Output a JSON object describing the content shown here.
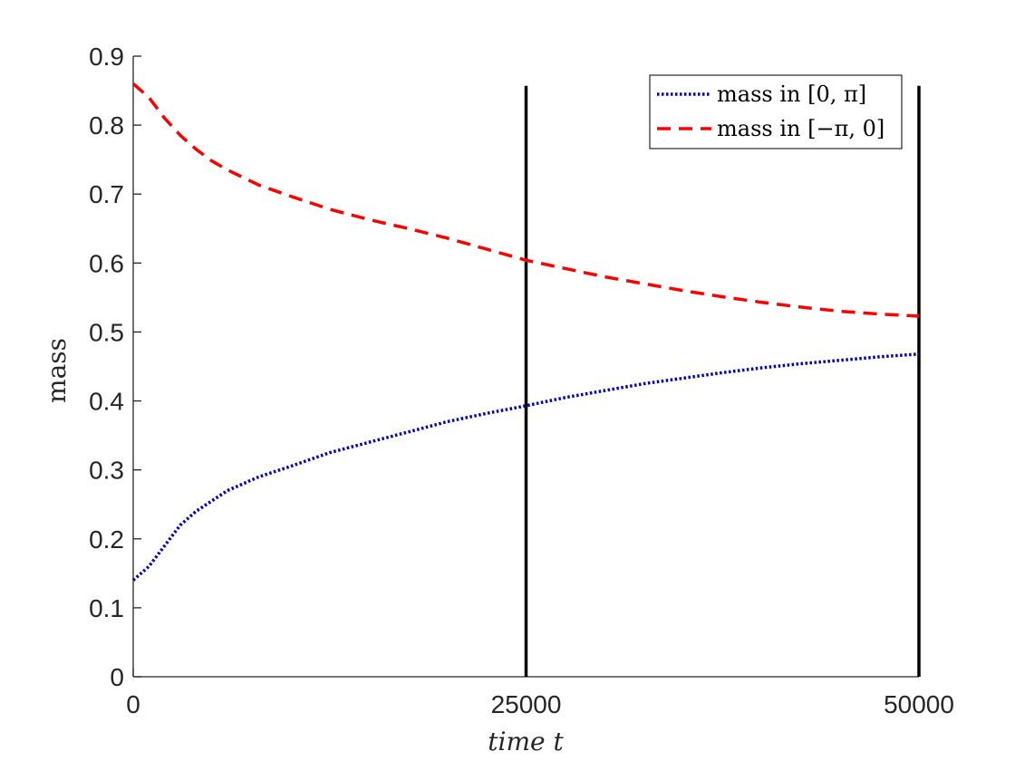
{
  "chart_data": {
    "type": "line",
    "xlabel": "time t",
    "ylabel": "mass",
    "xlim": [
      0,
      50000
    ],
    "ylim": [
      0,
      0.9
    ],
    "xticks": [
      0,
      25000,
      50000
    ],
    "xtick_labels": [
      "0",
      "25000",
      "50000"
    ],
    "yticks": [
      0,
      0.1,
      0.2,
      0.3,
      0.4,
      0.5,
      0.6,
      0.7,
      0.8,
      0.9
    ],
    "ytick_labels": [
      "0",
      "0.1",
      "0.2",
      "0.3",
      "0.4",
      "0.5",
      "0.6",
      "0.7",
      "0.8",
      "0.9"
    ],
    "grid": false,
    "legend_position": "top-right",
    "series": [
      {
        "name": "mass in [0, π]",
        "color": "#0000cc",
        "style": "dotted",
        "x": [
          0,
          1000,
          2000,
          3000,
          4000,
          5000,
          6000,
          7000,
          8000,
          10000,
          12500,
          15000,
          17500,
          20000,
          22500,
          25000,
          27500,
          30000,
          32500,
          35000,
          37500,
          40000,
          42500,
          45000,
          47500,
          50000
        ],
        "values": [
          0.14,
          0.16,
          0.19,
          0.22,
          0.24,
          0.255,
          0.27,
          0.28,
          0.29,
          0.305,
          0.325,
          0.34,
          0.355,
          0.37,
          0.382,
          0.393,
          0.405,
          0.415,
          0.425,
          0.433,
          0.441,
          0.448,
          0.454,
          0.459,
          0.464,
          0.468
        ]
      },
      {
        "name": "mass in [−π, 0]",
        "color": "#ff0000",
        "style": "dashed",
        "x": [
          0,
          1000,
          2000,
          3000,
          4000,
          5000,
          6000,
          7000,
          8000,
          10000,
          12500,
          15000,
          17500,
          20000,
          22500,
          25000,
          27500,
          30000,
          32500,
          35000,
          37500,
          40000,
          42500,
          45000,
          47500,
          50000
        ],
        "values": [
          0.86,
          0.84,
          0.81,
          0.785,
          0.765,
          0.748,
          0.735,
          0.724,
          0.713,
          0.697,
          0.678,
          0.663,
          0.65,
          0.636,
          0.62,
          0.604,
          0.592,
          0.58,
          0.57,
          0.56,
          0.551,
          0.543,
          0.536,
          0.53,
          0.526,
          0.523
        ]
      }
    ],
    "vertical_lines": [
      {
        "x": 25000,
        "y_top": 0.857,
        "color": "#000000"
      },
      {
        "x": 50000,
        "y_top": 0.857,
        "color": "#000000"
      }
    ]
  }
}
